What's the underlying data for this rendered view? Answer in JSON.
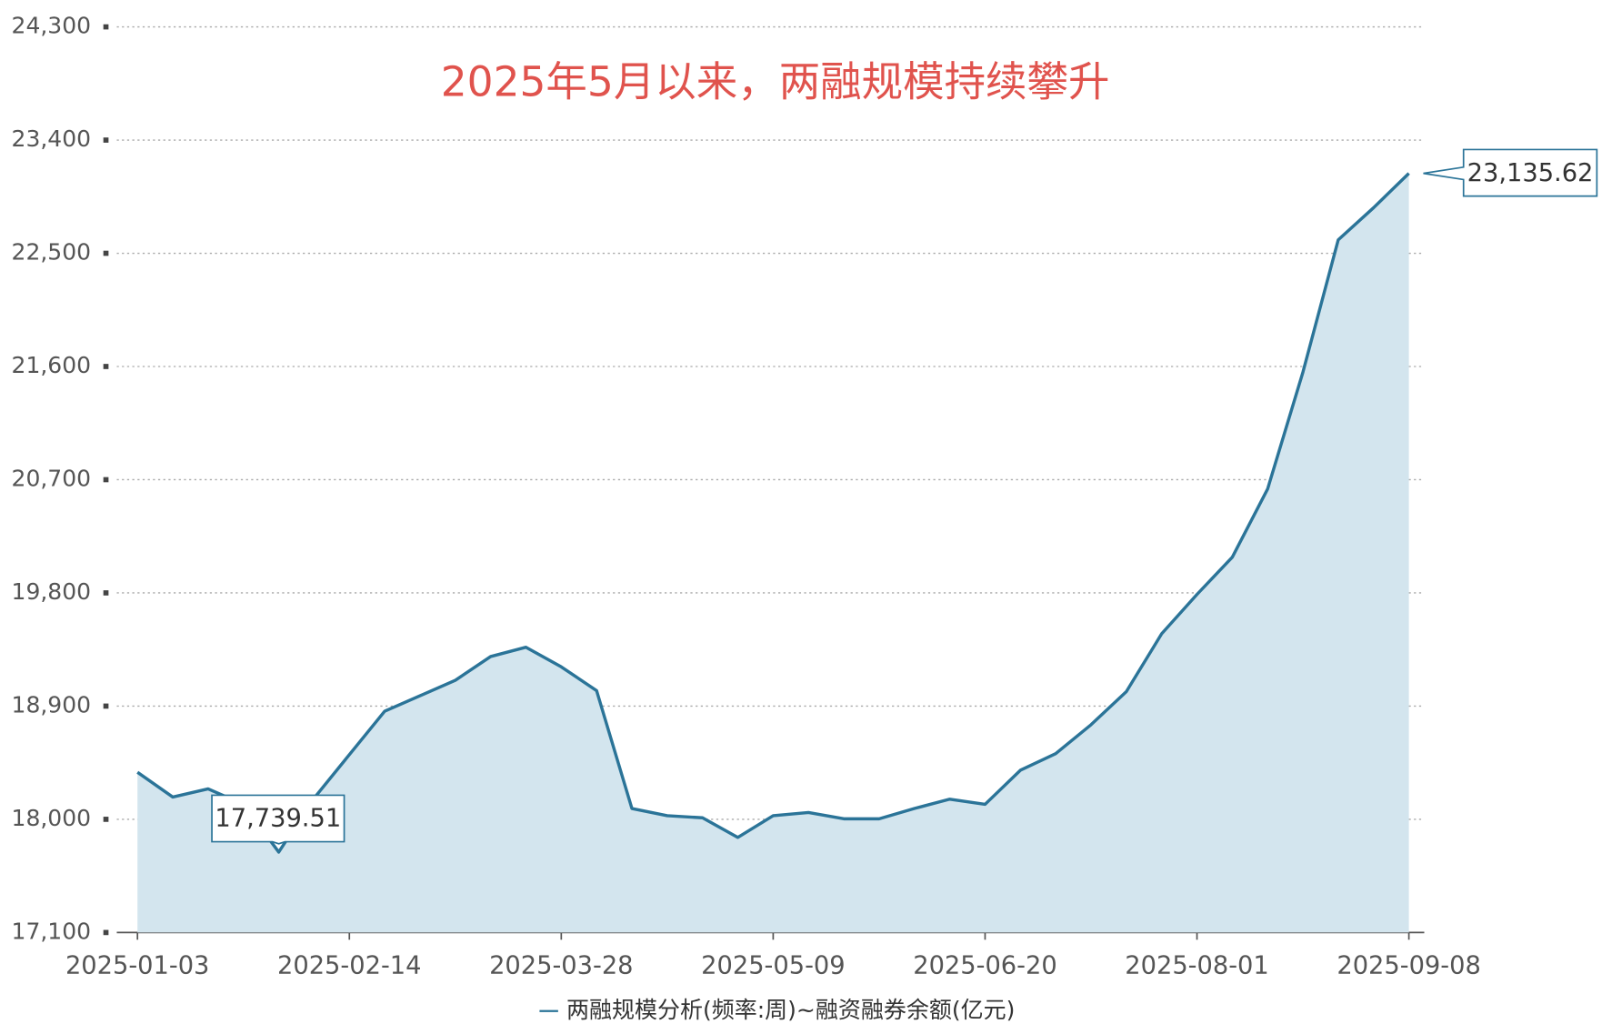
{
  "chart_data": {
    "type": "line",
    "title": "2025年5月以来，两融规模持续攀升",
    "categories": [
      "2025-01-03",
      null,
      null,
      null,
      null,
      null,
      "2025-02-14",
      null,
      null,
      null,
      null,
      null,
      "2025-03-28",
      null,
      null,
      null,
      null,
      null,
      "2025-05-09",
      null,
      null,
      null,
      null,
      null,
      "2025-06-20",
      null,
      null,
      null,
      null,
      null,
      "2025-08-01",
      null,
      null,
      null,
      null,
      null,
      "2025-09-08"
    ],
    "series": [
      {
        "name": "两融规模分析(频率:周)~融资融券余额(亿元)",
        "color": "#2b7498",
        "area_color": "#d3e5ee",
        "values": [
          18374,
          18177,
          18242,
          18119,
          17739.51,
          18168,
          18514,
          18859,
          18982,
          19105,
          19294,
          19368,
          19212,
          19023,
          18086,
          18029,
          18012,
          17856,
          18029,
          18054,
          18004,
          18004,
          18086,
          18160,
          18119,
          18390,
          18522,
          18752,
          19015,
          19475,
          19788,
          20084,
          20626,
          21555,
          22607,
          22862,
          23135.62
        ],
        "value_labels": [
          null,
          null,
          null,
          null,
          "17,739.51",
          null,
          null,
          null,
          null,
          null,
          null,
          null,
          null,
          null,
          null,
          null,
          null,
          null,
          null,
          null,
          null,
          null,
          null,
          null,
          null,
          null,
          null,
          null,
          null,
          null,
          null,
          null,
          null,
          null,
          null,
          null,
          "23,135.62"
        ]
      }
    ],
    "ylim": [
      17100,
      24300
    ],
    "yticks": [
      {
        "value": 17100,
        "label": "17,100"
      },
      {
        "value": 18000,
        "label": "18,000"
      },
      {
        "value": 18900,
        "label": "18,900"
      },
      {
        "value": 19800,
        "label": "19,800"
      },
      {
        "value": 20700,
        "label": "20,700"
      },
      {
        "value": 21600,
        "label": "21,600"
      },
      {
        "value": 22500,
        "label": "22,500"
      },
      {
        "value": 23400,
        "label": "23,400"
      },
      {
        "value": 24300,
        "label": "24,300"
      }
    ],
    "grid": true,
    "legend": "bottom",
    "title_color": "#e0534d"
  }
}
